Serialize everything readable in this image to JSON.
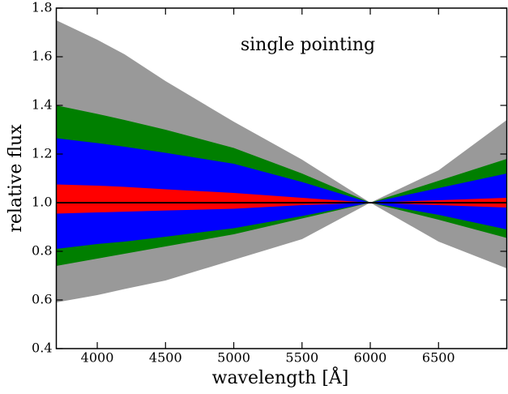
{
  "chart_data": {
    "type": "band",
    "title": "single pointing",
    "xlabel": "wavelength [Å]",
    "ylabel": "relative flux",
    "x": [
      3700,
      4000,
      4200,
      4500,
      5000,
      5500,
      6000,
      6500,
      7000
    ],
    "bands": [
      {
        "color": "#999999",
        "upper": [
          1.75,
          1.67,
          1.61,
          1.5,
          1.333,
          1.177,
          1.0,
          1.133,
          1.34
        ],
        "lower": [
          0.59,
          0.62,
          0.645,
          0.68,
          0.765,
          0.85,
          1.0,
          0.84,
          0.73
        ]
      },
      {
        "color": "#007f00",
        "upper": [
          1.4,
          1.365,
          1.34,
          1.3,
          1.225,
          1.12,
          1.0,
          1.09,
          1.18
        ],
        "lower": [
          0.74,
          0.77,
          0.79,
          0.82,
          0.87,
          0.935,
          1.0,
          0.93,
          0.855
        ]
      },
      {
        "color": "#0000ff",
        "upper": [
          1.265,
          1.245,
          1.23,
          1.205,
          1.16,
          1.085,
          1.0,
          1.06,
          1.12
        ],
        "lower": [
          0.81,
          0.83,
          0.84,
          0.86,
          0.895,
          0.945,
          1.0,
          0.95,
          0.89
        ]
      },
      {
        "color": "#ff0000",
        "upper": [
          1.075,
          1.07,
          1.065,
          1.055,
          1.04,
          1.02,
          1.0,
          1.01,
          1.02
        ],
        "lower": [
          0.955,
          0.96,
          0.963,
          0.968,
          0.975,
          0.99,
          1.0,
          0.99,
          0.98
        ]
      }
    ],
    "line": {
      "color": "#000000",
      "values": [
        1,
        1,
        1,
        1,
        1,
        1,
        1,
        1,
        1
      ]
    },
    "xlim": [
      3700,
      7000
    ],
    "ylim": [
      0.4,
      1.8
    ],
    "xticks": [
      4000,
      4500,
      5000,
      5500,
      6000,
      6500
    ],
    "yticks": [
      0.4,
      0.6,
      0.8,
      {
        "value": 1,
        "label": "1.0"
      },
      1.2,
      1.4,
      1.6,
      1.8
    ]
  }
}
